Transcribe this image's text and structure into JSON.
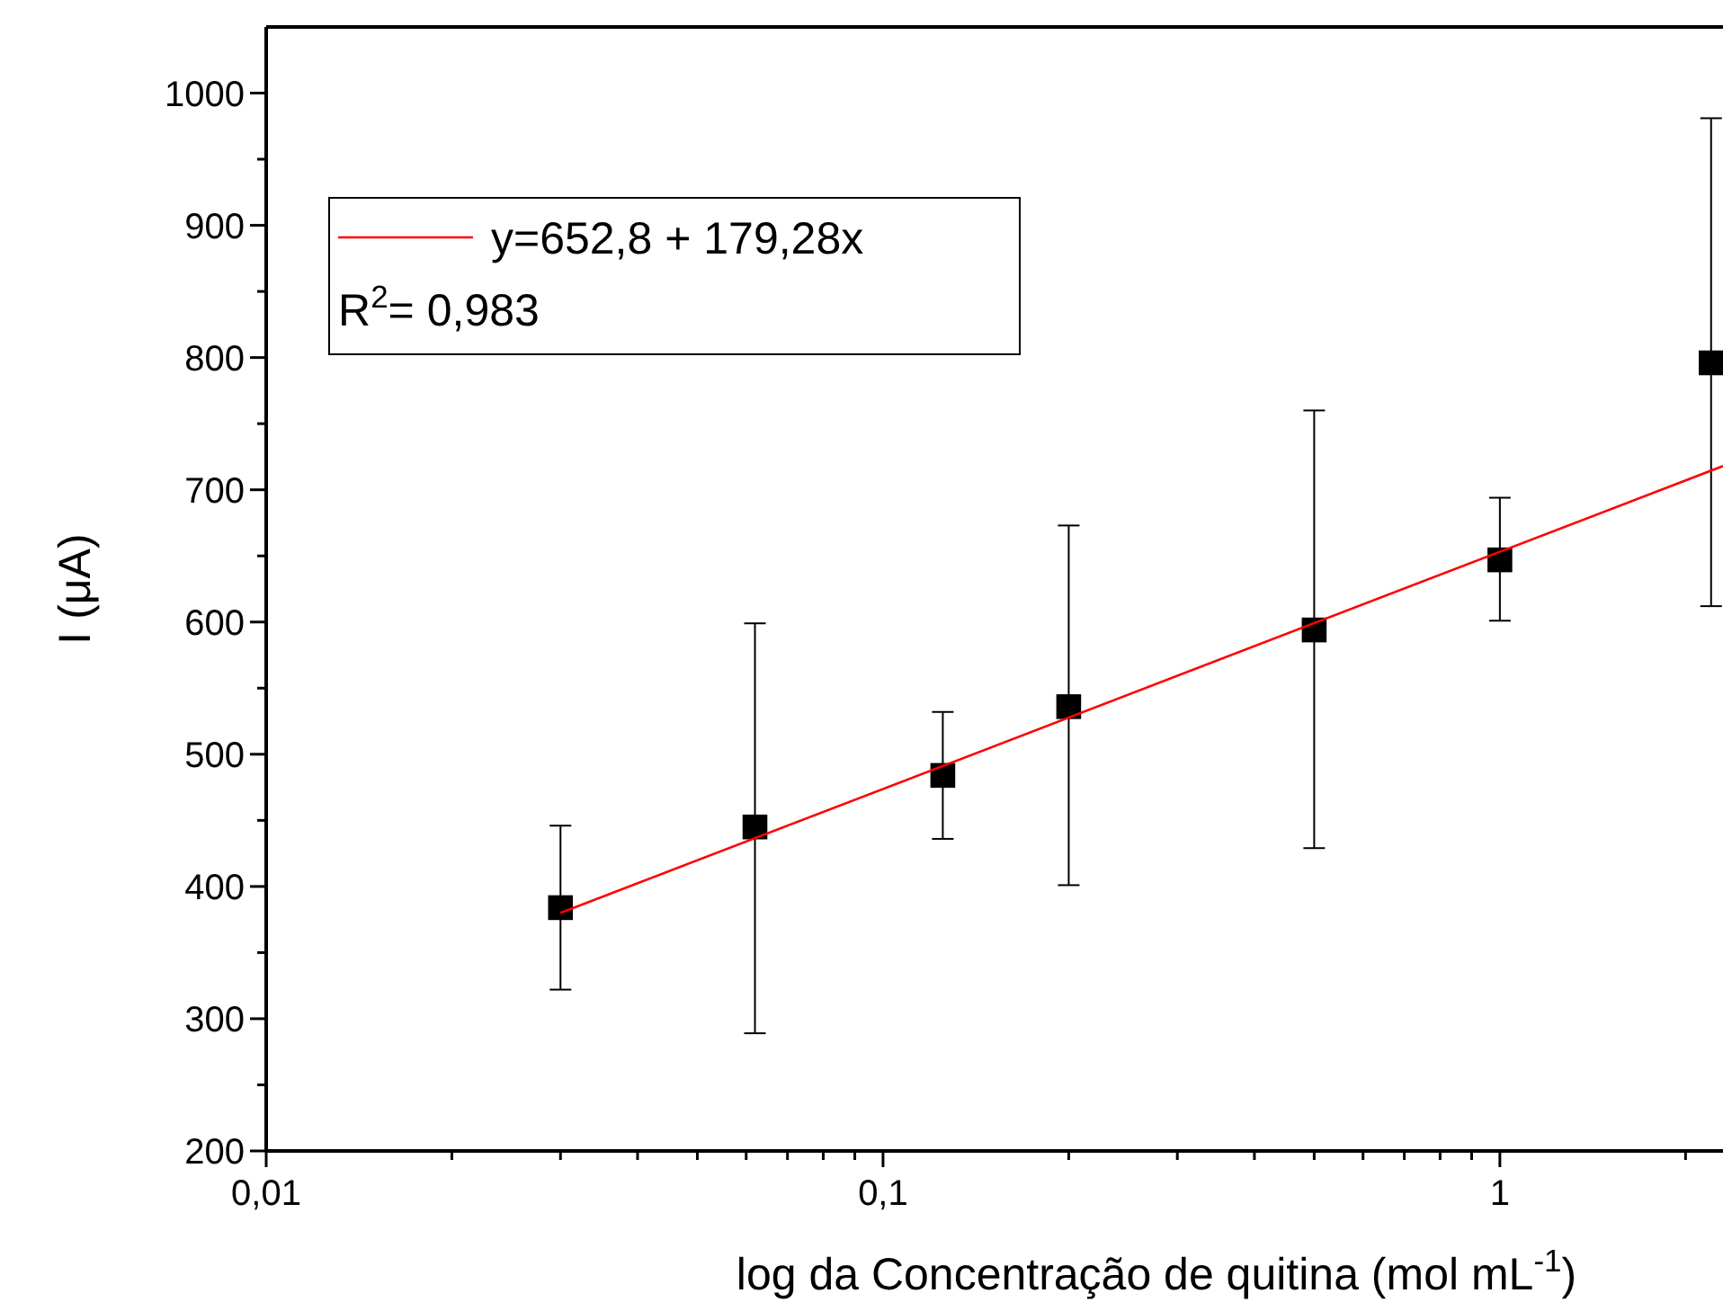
{
  "chart_data": {
    "type": "scatter",
    "xlabel": "log da Concentração de quitina (mol mL$^{-1}$)",
    "ylabel": "I (μA)",
    "log": "x",
    "xlim": [
      0.01,
      2.3
    ],
    "ylim": [
      200,
      1050
    ],
    "xticks": [
      {
        "value": 0.01,
        "label": "0,01"
      },
      {
        "value": 0.02,
        "label": null
      },
      {
        "value": 0.03,
        "label": null
      },
      {
        "value": 0.04,
        "label": null
      },
      {
        "value": 0.05,
        "label": null
      },
      {
        "value": 0.06,
        "label": null
      },
      {
        "value": 0.07,
        "label": null
      },
      {
        "value": 0.08,
        "label": null
      },
      {
        "value": 0.09,
        "label": null
      },
      {
        "value": 0.1,
        "label": "0,1"
      },
      {
        "value": 0.2,
        "label": null
      },
      {
        "value": 0.3,
        "label": null
      },
      {
        "value": 0.4,
        "label": null
      },
      {
        "value": 0.5,
        "label": null
      },
      {
        "value": 0.6,
        "label": null
      },
      {
        "value": 0.7,
        "label": null
      },
      {
        "value": 0.8,
        "label": null
      },
      {
        "value": 0.9,
        "label": null
      },
      {
        "value": 1,
        "label": "1"
      },
      {
        "value": 2,
        "label": null
      }
    ],
    "yticks": [
      200,
      {
        "value": 250,
        "label": null
      },
      300,
      {
        "value": 350,
        "label": null
      },
      400,
      {
        "value": 450,
        "label": null
      },
      500,
      {
        "value": 550,
        "label": null
      },
      600,
      {
        "value": 650,
        "label": null
      },
      700,
      {
        "value": 750,
        "label": null
      },
      800,
      {
        "value": 850,
        "label": null
      },
      900,
      {
        "value": 950,
        "label": null
      },
      1000
    ],
    "legend": "top left",
    "grid": false,
    "annotations": [
      "R$^{2}$= 0,983"
    ],
    "series": [
      {
        "color": "#000000",
        "marker": "square",
        "x": [
          0.03,
          0.062,
          0.125,
          0.2,
          0.5,
          1,
          2.2
        ],
        "values": [
          384,
          445,
          484,
          536,
          594,
          647,
          796
        ],
        "errors": [
          [
            322,
            446
          ],
          [
            289,
            599
          ],
          [
            436,
            532
          ],
          [
            401,
            673
          ],
          [
            429,
            760
          ],
          [
            601,
            694
          ],
          [
            612,
            981
          ]
        ]
      },
      {
        "type": "line",
        "name": "y=652,8 + 179,28x",
        "color": "#ff0000",
        "marker": "none",
        "line_style": "solid",
        "x": [
          0.03,
          2.3
        ],
        "values": [
          380,
          718
        ]
      }
    ]
  }
}
